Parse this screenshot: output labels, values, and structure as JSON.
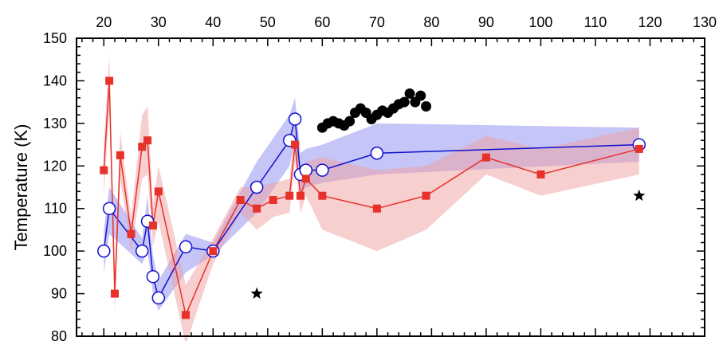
{
  "chart_data": {
    "type": "scatter",
    "title": "",
    "xlabel": "",
    "ylabel": "Temperature (K)",
    "xlim": [
      15,
      130
    ],
    "ylim": [
      80,
      150
    ],
    "x_ticks": [
      20,
      30,
      40,
      50,
      60,
      70,
      80,
      90,
      100,
      110,
      120,
      130
    ],
    "y_ticks": [
      80,
      90,
      100,
      110,
      120,
      130,
      140,
      150
    ],
    "grid": false,
    "legend": "none",
    "colors": {
      "blue": "#1010d0",
      "blue_band": "#8c8cf0",
      "red": "#e8312a",
      "red_band": "#f0a0a0",
      "black": "#000000"
    },
    "series": [
      {
        "marker": "open-circle",
        "color": "#1010d0",
        "band_color": "#8c8cf0",
        "x": [
          20,
          21,
          27,
          28,
          29,
          30,
          35,
          40,
          48,
          54,
          55,
          56,
          57,
          60,
          70,
          118
        ],
        "y": [
          100,
          110,
          100,
          107,
          94,
          89,
          101,
          100,
          115,
          126,
          131,
          118,
          119,
          119,
          123,
          125
        ],
        "band_lower": [
          95,
          104,
          97,
          100,
          90,
          86,
          95,
          99,
          109,
          120,
          126,
          113,
          115,
          116,
          118,
          121
        ],
        "band_upper": [
          105,
          115,
          103,
          113,
          99,
          93,
          104,
          102,
          121,
          132,
          136,
          123,
          124,
          125,
          130,
          129
        ]
      },
      {
        "marker": "filled-square",
        "color": "#e8312a",
        "band_color": "#f0a0a0",
        "x": [
          20,
          21,
          22,
          23,
          25,
          27,
          28,
          29,
          30,
          35,
          40,
          45,
          48,
          51,
          54,
          55,
          56,
          57,
          60,
          70,
          79,
          90,
          100,
          118
        ],
        "y": [
          119,
          140,
          90,
          122.5,
          104,
          124.5,
          126,
          106,
          114,
          85,
          100,
          112,
          110,
          112,
          113,
          125,
          113,
          117,
          113,
          110,
          113,
          122,
          118,
          124
        ],
        "band_lower": [
          113,
          133,
          86,
          117,
          100,
          117,
          118,
          101,
          107,
          78,
          97,
          109,
          105,
          108,
          109,
          121,
          109,
          113,
          105,
          100,
          105,
          118,
          113,
          118
        ],
        "band_upper": [
          125,
          146,
          95,
          128,
          108,
          132,
          134,
          111,
          120,
          92,
          103,
          115,
          115,
          116,
          117,
          129,
          117,
          121,
          122,
          119,
          120,
          127,
          124,
          129
        ]
      },
      {
        "marker": "filled-circle",
        "color": "#000000",
        "x": [
          60,
          61,
          62,
          63,
          64,
          65,
          66,
          67,
          68,
          69,
          70,
          71,
          72,
          73,
          74,
          75,
          76,
          77,
          78,
          79
        ],
        "y": [
          129,
          130,
          130.5,
          130,
          129.5,
          130.5,
          132.5,
          133.5,
          132.5,
          131,
          132,
          133,
          132.5,
          133.5,
          134.5,
          135,
          137,
          135,
          136.5,
          134
        ]
      },
      {
        "marker": "star",
        "color": "#000000",
        "x": [
          48,
          118
        ],
        "y": [
          90,
          113
        ]
      }
    ]
  }
}
